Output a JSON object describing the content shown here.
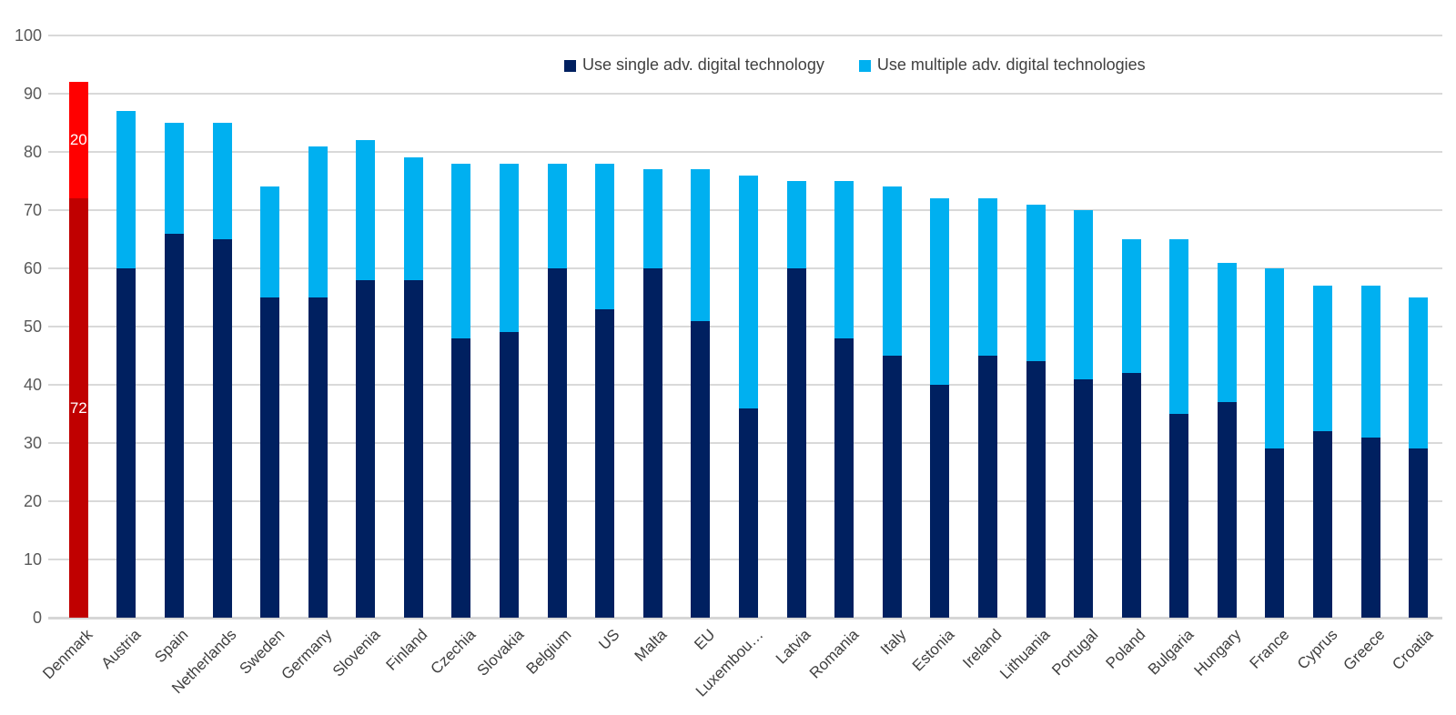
{
  "chart_data": {
    "type": "bar",
    "stacked": true,
    "title": "",
    "xlabel": "",
    "ylabel": "",
    "ylim": [
      0,
      100
    ],
    "y_ticks": [
      0,
      10,
      20,
      30,
      40,
      50,
      60,
      70,
      80,
      90,
      100
    ],
    "grid": "horizontal-gridlines-on",
    "legend_position": "top-center",
    "categories": [
      "Denmark",
      "Austria",
      "Spain",
      "Netherlands",
      "Sweden",
      "Germany",
      "Slovenia",
      "Finland",
      "Czechia",
      "Slovakia",
      "Belgium",
      "US",
      "Malta",
      "EU",
      "Luxembourg",
      "Latvia",
      "Romania",
      "Italy",
      "Estonia",
      "Ireland",
      "Lithuania",
      "Portugal",
      "Poland",
      "Bulgaria",
      "Hungary",
      "France",
      "Cyprus",
      "Greece",
      "Croatia"
    ],
    "x_tick_labels": [
      "Denmark",
      "Austria",
      "Spain",
      "Netherlands",
      "Sweden",
      "Germany",
      "Slovenia",
      "Finland",
      "Czechia",
      "Slovakia",
      "Belgium",
      "US",
      "Malta",
      "EU",
      "Luxembou…",
      "Latvia",
      "Romania",
      "Italy",
      "Estonia",
      "Ireland",
      "Lithuania",
      "Portugal",
      "Poland",
      "Bulgaria",
      "Hungary",
      "France",
      "Cyprus",
      "Greece",
      "Croatia"
    ],
    "series": [
      {
        "name": "Use single adv. digital technology",
        "color": "#002060",
        "values": [
          72,
          60,
          66,
          65,
          55,
          55,
          58,
          58,
          48,
          49,
          60,
          53,
          60,
          51,
          36,
          60,
          48,
          45,
          40,
          45,
          44,
          41,
          42,
          35,
          37,
          29,
          32,
          31,
          29
        ]
      },
      {
        "name": "Use multiple adv. digital technologies",
        "color": "#00b0f0",
        "values": [
          20,
          27,
          19,
          20,
          19,
          26,
          24,
          21,
          30,
          29,
          18,
          25,
          17,
          26,
          40,
          15,
          27,
          29,
          32,
          27,
          27,
          29,
          23,
          30,
          24,
          31,
          25,
          26,
          26
        ]
      }
    ],
    "totals": [
      92,
      87,
      85,
      85,
      74,
      81,
      82,
      79,
      78,
      78,
      78,
      78,
      77,
      77,
      76,
      75,
      75,
      74,
      72,
      72,
      71,
      70,
      65,
      65,
      61,
      60,
      57,
      57,
      55
    ],
    "highlight": {
      "category": "Denmark",
      "index": 0,
      "single_color": "#c00000",
      "multiple_color": "#ff0000",
      "single_label": "72",
      "multiple_label": "20",
      "label_color": "#ffffff"
    },
    "colors": {
      "gridline": "#d9d9d9",
      "axis_text": "#595959",
      "category_text": "#404040",
      "legend_text": "#404040",
      "background": "#ffffff"
    }
  }
}
